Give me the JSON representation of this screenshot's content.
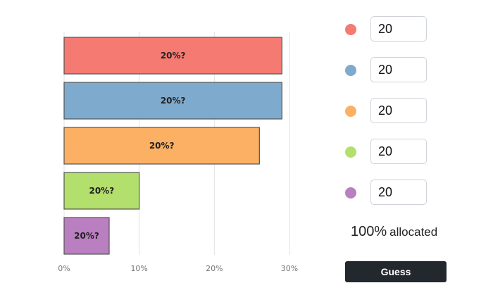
{
  "chart_data": {
    "type": "bar",
    "orientation": "horizontal",
    "categories": [
      "red",
      "blue",
      "orange",
      "green",
      "purple"
    ],
    "values": [
      29,
      29,
      26,
      10,
      6
    ],
    "labels": [
      "20%?",
      "20%?",
      "20%?",
      "20%?",
      "20%?"
    ],
    "colors": [
      "#f47a72",
      "#7eaacd",
      "#fbb063",
      "#b3df6c",
      "#b97fc0"
    ],
    "xticks": [
      "0%",
      "10%",
      "20%",
      "30%"
    ],
    "xlim": [
      0,
      30
    ],
    "grid": true,
    "xlabel": "",
    "ylabel": ""
  },
  "allocation": {
    "inputs": [
      {
        "color": "#f47a72",
        "value": "20"
      },
      {
        "color": "#7eaacd",
        "value": "20"
      },
      {
        "color": "#fbb063",
        "value": "20"
      },
      {
        "color": "#b3df6c",
        "value": "20"
      },
      {
        "color": "#b97fc0",
        "value": "20"
      }
    ],
    "total_percent": "100%",
    "total_word": "allocated",
    "guess_label": "Guess"
  }
}
